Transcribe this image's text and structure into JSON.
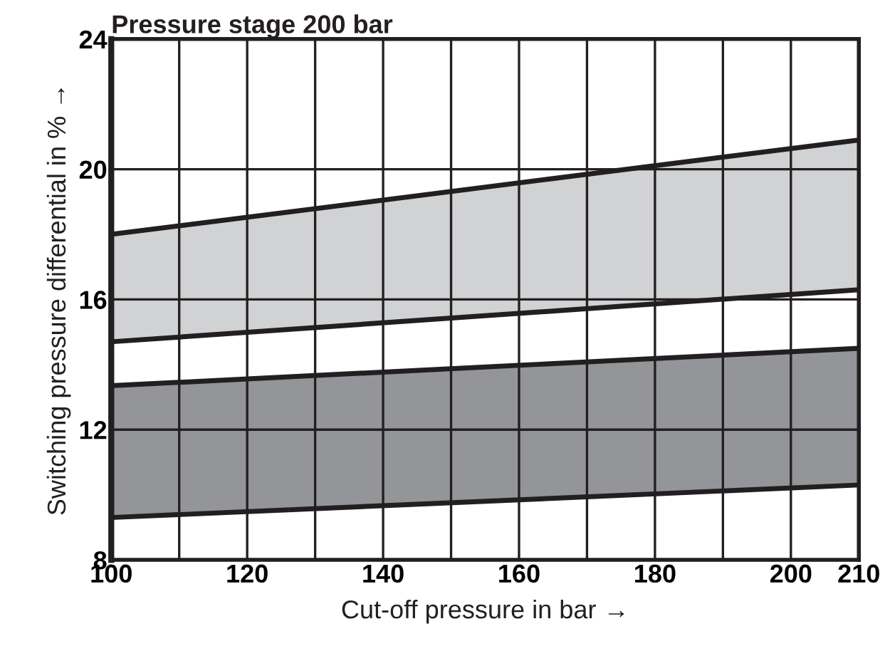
{
  "chart_data": {
    "type": "line",
    "title": "Pressure stage 200 bar",
    "xlabel": "Cut-off pressure in bar →",
    "ylabel": "Switching pressure differential in % →",
    "x": [
      100,
      210
    ],
    "series": [
      {
        "color": "#231f20",
        "values": [
          18,
          20.9
        ],
        "lower": [
          14.7,
          16.3
        ],
        "upper": [
          18,
          20.9
        ]
      },
      {
        "color": "#231f20",
        "values": [
          13.35,
          14.5
        ],
        "lower": [
          9.3,
          10.3
        ],
        "upper": [
          13.35,
          14.5
        ]
      },
      {
        "color": "#231f20",
        "values": [
          14.7,
          16.3
        ]
      },
      {
        "color": "#231f20",
        "values": [
          9.3,
          10.3
        ]
      }
    ],
    "xlim": [
      100,
      210
    ],
    "ylim": [
      8,
      24
    ],
    "xticks": [
      100,
      {
        "value": 110,
        "label": null
      },
      120,
      {
        "value": 130,
        "label": null
      },
      140,
      {
        "value": 150,
        "label": null
      },
      160,
      {
        "value": 170,
        "label": null
      },
      180,
      {
        "value": 190,
        "label": null
      },
      200,
      210
    ],
    "yticks": [
      8,
      12,
      16,
      20,
      24
    ],
    "grid": true,
    "line_style": "solid"
  }
}
